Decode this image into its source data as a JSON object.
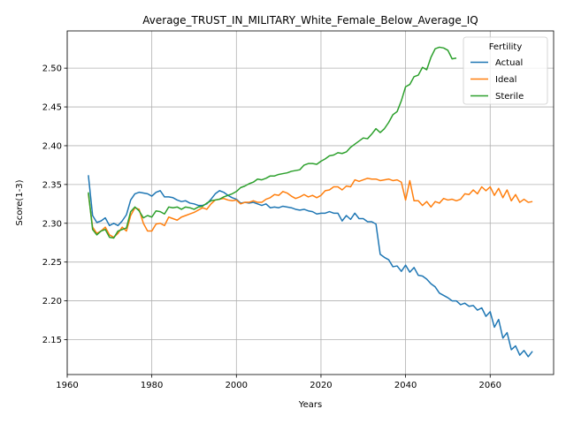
{
  "chart_data": {
    "type": "line",
    "title": "Average_TRUST_IN_MILITARY_White_Female_Below_Average_IQ",
    "xlabel": "Years",
    "ylabel": "Score(1-3)",
    "xlim": [
      1960,
      2075
    ],
    "ylim": [
      2.105,
      2.548
    ],
    "xticks": [
      1960,
      1980,
      2000,
      2020,
      2040,
      2060
    ],
    "yticks": [
      2.15,
      2.2,
      2.25,
      2.3,
      2.35,
      2.4,
      2.45,
      2.5
    ],
    "ytick_labels": [
      "2.15",
      "2.20",
      "2.25",
      "2.30",
      "2.35",
      "2.40",
      "2.45",
      "2.50"
    ],
    "grid": true,
    "legend": {
      "title": "Fertility",
      "placement": "top-right"
    },
    "colors": {
      "Actual": "#1f77b4",
      "Ideal": "#ff7f0e",
      "Sterile": "#2ca02c"
    },
    "series": [
      {
        "name": "Actual",
        "x": [
          1965,
          1966,
          1967,
          1968,
          1969,
          1970,
          1971,
          1972,
          1973,
          1974,
          1975,
          1976,
          1977,
          1978,
          1979,
          1980,
          1981,
          1982,
          1983,
          1984,
          1985,
          1986,
          1987,
          1988,
          1989,
          1990,
          1991,
          1992,
          1993,
          1994,
          1995,
          1996,
          1997,
          1998,
          1999,
          2000,
          2001,
          2002,
          2003,
          2004,
          2005,
          2006,
          2007,
          2008,
          2009,
          2010,
          2011,
          2012,
          2013,
          2014,
          2015,
          2016,
          2017,
          2018,
          2019,
          2020,
          2021,
          2022,
          2023,
          2024,
          2025,
          2026,
          2027,
          2028,
          2029,
          2030,
          2031,
          2032,
          2033,
          2034,
          2035,
          2036,
          2037,
          2038,
          2039,
          2040,
          2041,
          2042,
          2043,
          2044,
          2045,
          2046,
          2047,
          2048,
          2049,
          2050,
          2051,
          2052,
          2053,
          2054,
          2055,
          2056,
          2057,
          2058,
          2059,
          2060,
          2061,
          2062,
          2063,
          2064,
          2065,
          2066,
          2067,
          2068,
          2069,
          2070
        ],
        "values": [
          2.362,
          2.31,
          2.301,
          2.303,
          2.307,
          2.297,
          2.3,
          2.297,
          2.303,
          2.311,
          2.33,
          2.338,
          2.34,
          2.339,
          2.338,
          2.335,
          2.34,
          2.342,
          2.334,
          2.334,
          2.333,
          2.33,
          2.328,
          2.329,
          2.326,
          2.325,
          2.323,
          2.323,
          2.325,
          2.331,
          2.338,
          2.342,
          2.34,
          2.336,
          2.333,
          2.331,
          2.326,
          2.327,
          2.326,
          2.327,
          2.325,
          2.323,
          2.325,
          2.32,
          2.321,
          2.32,
          2.322,
          2.321,
          2.32,
          2.318,
          2.317,
          2.318,
          2.316,
          2.315,
          2.312,
          2.313,
          2.313,
          2.315,
          2.313,
          2.313,
          2.303,
          2.31,
          2.305,
          2.313,
          2.306,
          2.306,
          2.302,
          2.302,
          2.299,
          2.26,
          2.256,
          2.253,
          2.244,
          2.245,
          2.238,
          2.246,
          2.237,
          2.243,
          2.233,
          2.232,
          2.228,
          2.222,
          2.218,
          2.21,
          2.207,
          2.204,
          2.2,
          2.2,
          2.195,
          2.197,
          2.193,
          2.194,
          2.188,
          2.191,
          2.18,
          2.186,
          2.166,
          2.176,
          2.152,
          2.159,
          2.137,
          2.142,
          2.13,
          2.136,
          2.128,
          2.135
        ]
      },
      {
        "name": "Ideal",
        "x": [
          1965,
          1966,
          1967,
          1968,
          1969,
          1970,
          1971,
          1972,
          1973,
          1974,
          1975,
          1976,
          1977,
          1978,
          1979,
          1980,
          1981,
          1982,
          1983,
          1984,
          1985,
          1986,
          1987,
          1988,
          1989,
          1990,
          1991,
          1992,
          1993,
          1994,
          1995,
          1996,
          1997,
          1998,
          1999,
          2000,
          2001,
          2002,
          2003,
          2004,
          2005,
          2006,
          2007,
          2008,
          2009,
          2010,
          2011,
          2012,
          2013,
          2014,
          2015,
          2016,
          2017,
          2018,
          2019,
          2020,
          2021,
          2022,
          2023,
          2024,
          2025,
          2026,
          2027,
          2028,
          2029,
          2030,
          2031,
          2032,
          2033,
          2034,
          2035,
          2036,
          2037,
          2038,
          2039,
          2040,
          2041,
          2042,
          2043,
          2044,
          2045,
          2046,
          2047,
          2048,
          2049,
          2050,
          2051,
          2052,
          2053,
          2054,
          2055,
          2056,
          2057,
          2058,
          2059,
          2060,
          2061,
          2062,
          2063,
          2064,
          2065,
          2066,
          2067,
          2068,
          2069,
          2070
        ],
        "values": [
          2.338,
          2.295,
          2.287,
          2.29,
          2.295,
          2.285,
          2.282,
          2.287,
          2.295,
          2.29,
          2.31,
          2.32,
          2.318,
          2.3,
          2.29,
          2.29,
          2.299,
          2.3,
          2.297,
          2.308,
          2.306,
          2.304,
          2.308,
          2.31,
          2.312,
          2.314,
          2.317,
          2.32,
          2.318,
          2.325,
          2.33,
          2.331,
          2.332,
          2.33,
          2.329,
          2.33,
          2.325,
          2.327,
          2.327,
          2.329,
          2.327,
          2.327,
          2.331,
          2.333,
          2.337,
          2.336,
          2.341,
          2.339,
          2.335,
          2.332,
          2.334,
          2.337,
          2.334,
          2.336,
          2.333,
          2.336,
          2.342,
          2.343,
          2.347,
          2.347,
          2.343,
          2.348,
          2.347,
          2.356,
          2.354,
          2.356,
          2.358,
          2.357,
          2.357,
          2.355,
          2.356,
          2.357,
          2.355,
          2.356,
          2.353,
          2.33,
          2.355,
          2.329,
          2.329,
          2.323,
          2.328,
          2.321,
          2.328,
          2.326,
          2.332,
          2.33,
          2.331,
          2.329,
          2.331,
          2.338,
          2.337,
          2.343,
          2.338,
          2.347,
          2.342,
          2.347,
          2.336,
          2.345,
          2.333,
          2.343,
          2.329,
          2.337,
          2.327,
          2.331,
          2.327,
          2.328
        ]
      },
      {
        "name": "Sterile",
        "x": [
          1965,
          1966,
          1967,
          1968,
          1969,
          1970,
          1971,
          1972,
          1973,
          1974,
          1975,
          1976,
          1977,
          1978,
          1979,
          1980,
          1981,
          1982,
          1983,
          1984,
          1985,
          1986,
          1987,
          1988,
          1989,
          1990,
          1991,
          1992,
          1993,
          1994,
          1995,
          1996,
          1997,
          1998,
          1999,
          2000,
          2001,
          2002,
          2003,
          2004,
          2005,
          2006,
          2007,
          2008,
          2009,
          2010,
          2011,
          2012,
          2013,
          2014,
          2015,
          2016,
          2017,
          2018,
          2019,
          2020,
          2021,
          2022,
          2023,
          2024,
          2025,
          2026,
          2027,
          2028,
          2029,
          2030,
          2031,
          2032,
          2033,
          2034,
          2035,
          2036,
          2037,
          2038,
          2039,
          2040,
          2041,
          2042,
          2043,
          2044,
          2045,
          2046,
          2047,
          2048,
          2049,
          2050,
          2051,
          2052
        ],
        "values": [
          2.34,
          2.292,
          2.285,
          2.29,
          2.292,
          2.282,
          2.281,
          2.29,
          2.292,
          2.294,
          2.315,
          2.321,
          2.316,
          2.307,
          2.31,
          2.308,
          2.316,
          2.315,
          2.312,
          2.321,
          2.32,
          2.321,
          2.318,
          2.321,
          2.32,
          2.318,
          2.321,
          2.322,
          2.326,
          2.329,
          2.33,
          2.331,
          2.334,
          2.336,
          2.338,
          2.341,
          2.346,
          2.348,
          2.351,
          2.353,
          2.357,
          2.356,
          2.358,
          2.361,
          2.361,
          2.363,
          2.364,
          2.365,
          2.367,
          2.368,
          2.369,
          2.375,
          2.377,
          2.377,
          2.376,
          2.38,
          2.383,
          2.387,
          2.388,
          2.391,
          2.39,
          2.392,
          2.398,
          2.402,
          2.406,
          2.41,
          2.409,
          2.415,
          2.422,
          2.417,
          2.422,
          2.43,
          2.44,
          2.444,
          2.458,
          2.476,
          2.479,
          2.489,
          2.491,
          2.501,
          2.498,
          2.514,
          2.525,
          2.527,
          2.526,
          2.523,
          2.512,
          2.513
        ]
      }
    ]
  }
}
